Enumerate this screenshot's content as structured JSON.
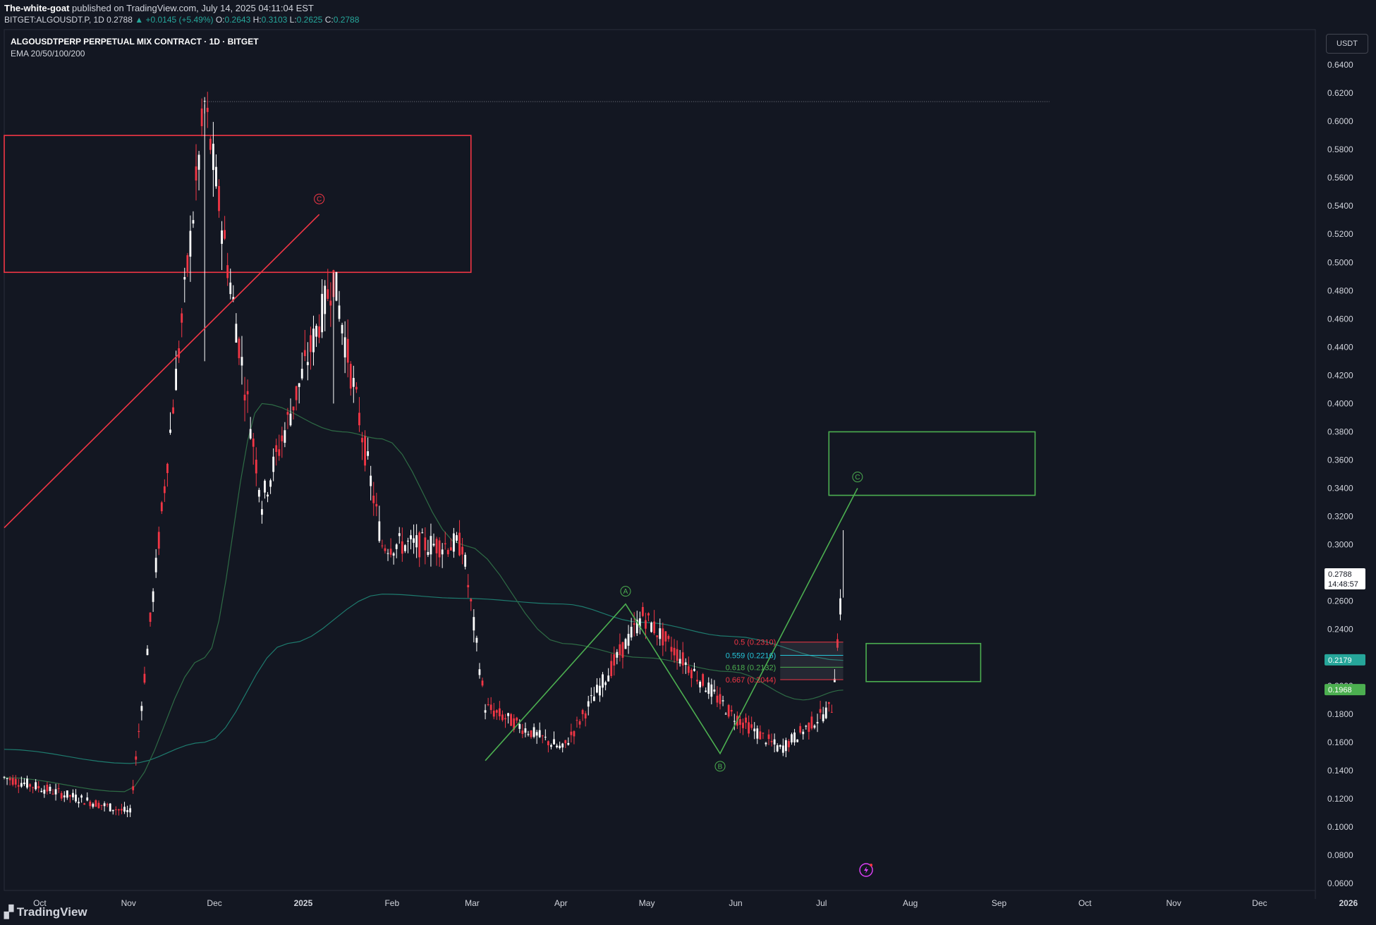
{
  "header": {
    "author": "The-white-goat",
    "published_text": " published on TradingView.com, July 14, 2025 04:11:04 EST",
    "symbol": "BITGET:ALGOUSDT.P, 1D",
    "price": "0.2788",
    "change": "+0.0145 (+5.49%)",
    "open_label": "O:",
    "open": "0.2643",
    "high_label": "H:",
    "high": "0.3103",
    "low_label": "L:",
    "low": "0.2625",
    "close_label": "C:",
    "close": "0.2788"
  },
  "legend": {
    "title": "ALGOUSDTPERP PERPETUAL MIX CONTRACT · 1D · BITGET",
    "indicator": "EMA 20/50/100/200"
  },
  "currency_button": "USDT",
  "footer": {
    "brand": "TradingView"
  },
  "colors": {
    "background": "#131722",
    "up": "#ffffff",
    "down": "#f23645",
    "green": "#4caf50",
    "red": "#f23645",
    "ema_fast": "#2e6b45",
    "ema_slow": "#1e7b6e"
  },
  "chart_data": {
    "type": "candlestick",
    "grid": false,
    "y_scale": "linear",
    "ylim": [
      0.055,
      0.665
    ],
    "y_ticks": [
      "0.6400",
      "0.6200",
      "0.6000",
      "0.5800",
      "0.5600",
      "0.5400",
      "0.5200",
      "0.5000",
      "0.4800",
      "0.4600",
      "0.4400",
      "0.4200",
      "0.4000",
      "0.3800",
      "0.3600",
      "0.3400",
      "0.3200",
      "0.3000",
      "0.2800",
      "0.2600",
      "0.2400",
      "0.2200",
      "0.2000",
      "0.1800",
      "0.1600",
      "0.1400",
      "0.1200",
      "0.1000",
      "0.0800",
      "0.0600"
    ],
    "x_ticks": [
      "Oct",
      "Nov",
      "Dec",
      "2025",
      "Feb",
      "Mar",
      "Apr",
      "May",
      "Jun",
      "Jul",
      "Aug",
      "Sep",
      "Oct",
      "Nov",
      "Dec",
      "2026"
    ],
    "price_badges": [
      {
        "value": "0.2788",
        "sub": "14:48:57",
        "color": "#ffffff",
        "text_color": "#131722"
      },
      {
        "value": "0.2179",
        "color": "#26a69a",
        "text_color": "#ffffff"
      },
      {
        "value": "0.1968",
        "color": "#4caf50",
        "text_color": "#ffffff"
      }
    ],
    "key_points": [
      {
        "date": "2024-09-24",
        "price": 0.135
      },
      {
        "date": "2024-11-07",
        "price": 0.11
      },
      {
        "date": "2024-12-03",
        "price": 0.612
      },
      {
        "date": "2024-12-23",
        "price": 0.33
      },
      {
        "date": "2025-01-17",
        "price": 0.49
      },
      {
        "date": "2025-02-03",
        "price": 0.3
      },
      {
        "date": "2025-03-03",
        "price": 0.3
      },
      {
        "date": "2025-03-11",
        "price": 0.185
      },
      {
        "date": "2025-04-07",
        "price": 0.155
      },
      {
        "date": "2025-05-05",
        "price": 0.25
      },
      {
        "date": "2025-06-05",
        "price": 0.18
      },
      {
        "date": "2025-06-22",
        "price": 0.155
      },
      {
        "date": "2025-07-10",
        "price": 0.185
      },
      {
        "date": "2025-07-14",
        "price": 0.2788
      }
    ],
    "ema_fast": [
      {
        "date": "2024-09-24",
        "price": 0.135
      },
      {
        "date": "2024-11-05",
        "price": 0.125
      },
      {
        "date": "2024-12-03",
        "price": 0.22
      },
      {
        "date": "2024-12-23",
        "price": 0.4
      },
      {
        "date": "2025-01-20",
        "price": 0.38
      },
      {
        "date": "2025-02-03",
        "price": 0.375
      },
      {
        "date": "2025-03-03",
        "price": 0.3
      },
      {
        "date": "2025-04-07",
        "price": 0.23
      },
      {
        "date": "2025-05-05",
        "price": 0.22
      },
      {
        "date": "2025-06-05",
        "price": 0.21
      },
      {
        "date": "2025-06-30",
        "price": 0.19
      },
      {
        "date": "2025-07-14",
        "price": 0.197
      }
    ],
    "ema_slow": [
      {
        "date": "2024-09-24",
        "price": 0.155
      },
      {
        "date": "2024-11-07",
        "price": 0.145
      },
      {
        "date": "2024-12-03",
        "price": 0.16
      },
      {
        "date": "2025-01-01",
        "price": 0.23
      },
      {
        "date": "2025-02-03",
        "price": 0.265
      },
      {
        "date": "2025-03-03",
        "price": 0.262
      },
      {
        "date": "2025-04-07",
        "price": 0.258
      },
      {
        "date": "2025-05-05",
        "price": 0.245
      },
      {
        "date": "2025-06-05",
        "price": 0.235
      },
      {
        "date": "2025-07-14",
        "price": 0.218
      }
    ],
    "zones": [
      {
        "color": "red",
        "x0": "2024-09-24",
        "x1": "2025-03-06",
        "y0": 0.493,
        "y1": 0.59
      },
      {
        "color": "green",
        "x0": "2025-07-09",
        "x1": "2025-09-19",
        "y0": 0.335,
        "y1": 0.38
      },
      {
        "color": "green",
        "x0": "2025-07-22",
        "x1": "2025-08-31",
        "y0": 0.203,
        "y1": 0.23
      }
    ],
    "lines": [
      {
        "color": "red",
        "points": [
          {
            "date": "2024-09-24",
            "price": 0.312
          },
          {
            "date": "2025-01-12",
            "price": 0.534
          }
        ]
      },
      {
        "color": "green",
        "points": [
          {
            "date": "2025-03-11",
            "price": 0.147
          },
          {
            "date": "2025-04-29",
            "price": 0.258
          },
          {
            "date": "2025-06-01",
            "price": 0.152
          },
          {
            "date": "2025-07-19",
            "price": 0.34
          }
        ]
      }
    ],
    "high_line": {
      "from": "2024-12-03",
      "to": "2025-09-24",
      "price": 0.614
    },
    "wave_labels": [
      {
        "text": "C",
        "color": "red",
        "date": "2025-01-12",
        "price": 0.545
      },
      {
        "text": "A",
        "color": "green",
        "date": "2025-04-29",
        "price": 0.267
      },
      {
        "text": "B",
        "color": "green",
        "date": "2025-06-01",
        "price": 0.143
      },
      {
        "text": "C",
        "color": "green",
        "date": "2025-07-19",
        "price": 0.348
      }
    ],
    "fib_levels": [
      {
        "label": "0.5 (0.2310)",
        "price": 0.231,
        "color": "#f23645"
      },
      {
        "label": "0.559 (0.2216)",
        "price": 0.2216,
        "color": "#26c6da"
      },
      {
        "label": "0.618 (0.2132)",
        "price": 0.2132,
        "color": "#4caf50"
      },
      {
        "label": "0.667 (0.2044)",
        "price": 0.2044,
        "color": "#f23645"
      }
    ],
    "fib_range": {
      "x0": "2025-06-22",
      "x1": "2025-07-14"
    }
  }
}
